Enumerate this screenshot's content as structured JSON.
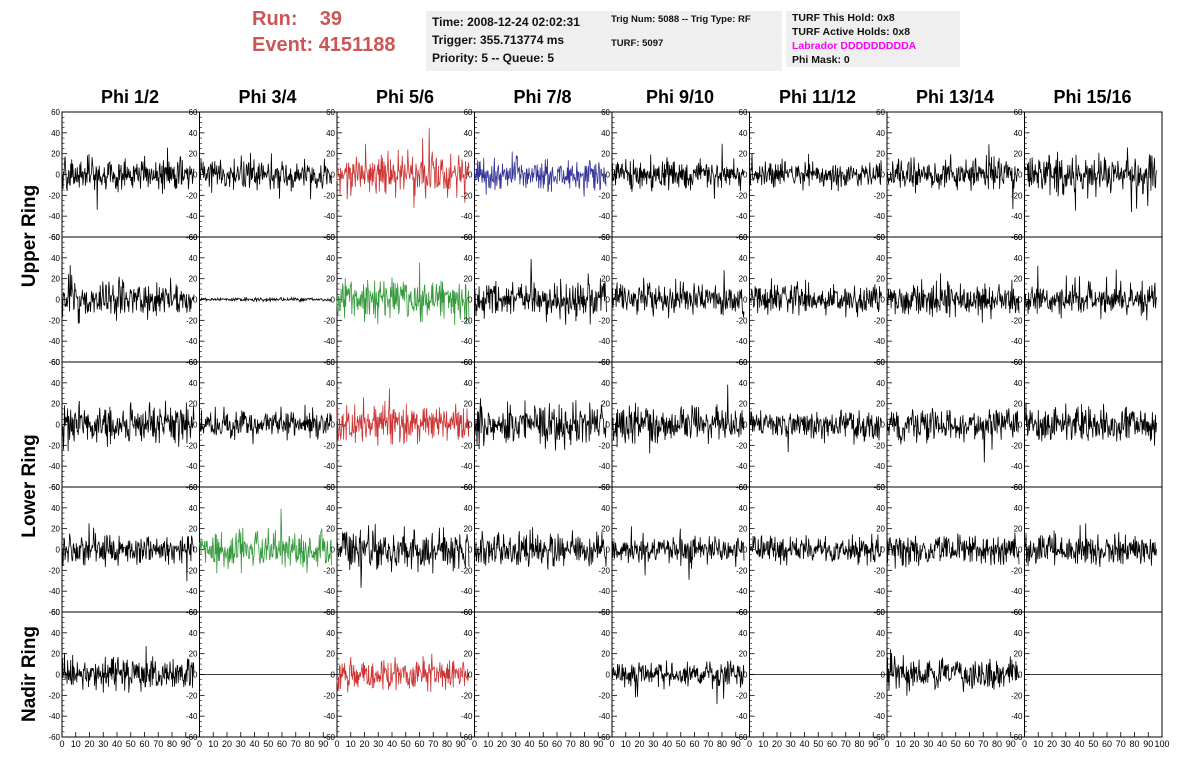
{
  "header": {
    "run_label": "Run:",
    "run_value": "39",
    "event_label": "Event:",
    "event_value": "4151188",
    "time": "Time: 2008-12-24 02:02:31",
    "trigger": "Trigger: 355.713774 ms",
    "priority_queue": "Priority: 5 -- Queue: 5",
    "trig_num_type": "Trig Num: 5088 -- Trig Type: RF",
    "turf": "TURF: 5097",
    "turf_this_hold": "TURF This Hold: 0x8",
    "turf_active_holds": "TURF Active Holds: 0x8",
    "labrador": "Labrador DDDDDDDDDA",
    "phi_mask": "Phi Mask: 0"
  },
  "phi_headers": [
    "Phi 1/2",
    "Phi 3/4",
    "Phi 5/6",
    "Phi 7/8",
    "Phi 9/10",
    "Phi 11/12",
    "Phi 13/14",
    "Phi 15/16"
  ],
  "ring_labels": [
    {
      "label": "Upper Ring",
      "rows": [
        0,
        1
      ]
    },
    {
      "label": "Lower Ring",
      "rows": [
        2,
        3
      ]
    },
    {
      "label": "Nadir Ring",
      "rows": [
        4
      ]
    }
  ],
  "chart_data": {
    "type": "line",
    "grid": false,
    "xlim": [
      0,
      100
    ],
    "ylim": [
      -60,
      60
    ],
    "y_ticks": [
      -60,
      -40,
      -20,
      0,
      20,
      40,
      60
    ],
    "x_tick_labels": [
      "0",
      "10",
      "20",
      "30",
      "40",
      "50",
      "60",
      "70",
      "80",
      "90",
      "100"
    ],
    "colors": {
      "normal": "#000000",
      "red": "#cc3333",
      "blue": "#333399",
      "green": "#33993a"
    },
    "panels": [
      [
        {
          "color": "normal",
          "amp": 14,
          "span": [
            0,
            96
          ]
        },
        {
          "color": "normal",
          "amp": 13,
          "span": [
            0,
            96
          ]
        },
        {
          "color": "red",
          "amp": 18,
          "span": [
            0,
            96
          ]
        },
        {
          "color": "blue",
          "amp": 14,
          "span": [
            0,
            96
          ]
        },
        {
          "color": "normal",
          "amp": 13,
          "span": [
            0,
            96
          ]
        },
        {
          "color": "normal",
          "amp": 11,
          "span": [
            0,
            96
          ]
        },
        {
          "color": "normal",
          "amp": 14,
          "span": [
            0,
            96
          ]
        },
        {
          "color": "normal",
          "amp": 17,
          "span": [
            0,
            96
          ]
        }
      ],
      [
        {
          "color": "normal",
          "amp": 15,
          "span": [
            0,
            96
          ]
        },
        {
          "color": "normal",
          "amp": 1.5,
          "span": [
            0,
            96
          ]
        },
        {
          "color": "green",
          "amp": 17,
          "span": [
            0,
            96
          ]
        },
        {
          "color": "normal",
          "amp": 15,
          "span": [
            0,
            96
          ]
        },
        {
          "color": "normal",
          "amp": 14,
          "span": [
            0,
            96
          ]
        },
        {
          "color": "normal",
          "amp": 14,
          "span": [
            0,
            96
          ]
        },
        {
          "color": "normal",
          "amp": 15,
          "span": [
            0,
            96
          ]
        },
        {
          "color": "normal",
          "amp": 14,
          "span": [
            0,
            96
          ]
        }
      ],
      [
        {
          "color": "normal",
          "amp": 17,
          "span": [
            0,
            96
          ]
        },
        {
          "color": "normal",
          "amp": 13,
          "span": [
            0,
            96
          ]
        },
        {
          "color": "red",
          "amp": 17,
          "span": [
            0,
            96
          ]
        },
        {
          "color": "normal",
          "amp": 18,
          "span": [
            0,
            96
          ]
        },
        {
          "color": "normal",
          "amp": 16,
          "span": [
            0,
            96
          ]
        },
        {
          "color": "normal",
          "amp": 13,
          "span": [
            0,
            96
          ]
        },
        {
          "color": "normal",
          "amp": 15,
          "span": [
            0,
            96
          ]
        },
        {
          "color": "normal",
          "amp": 15,
          "span": [
            0,
            96
          ]
        }
      ],
      [
        {
          "color": "normal",
          "amp": 13,
          "span": [
            0,
            96
          ]
        },
        {
          "color": "green",
          "amp": 17,
          "span": [
            0,
            96
          ]
        },
        {
          "color": "normal",
          "amp": 18,
          "span": [
            0,
            96
          ]
        },
        {
          "color": "normal",
          "amp": 14,
          "span": [
            0,
            96
          ]
        },
        {
          "color": "normal",
          "amp": 11,
          "span": [
            0,
            96
          ]
        },
        {
          "color": "normal",
          "amp": 12,
          "span": [
            0,
            96
          ]
        },
        {
          "color": "normal",
          "amp": 14,
          "span": [
            0,
            96
          ]
        },
        {
          "color": "normal",
          "amp": 14,
          "span": [
            0,
            96
          ]
        }
      ],
      [
        {
          "color": "normal",
          "amp": 15,
          "span": [
            0,
            96
          ]
        },
        {
          "color": "normal",
          "amp": 0,
          "span": [
            0,
            100
          ]
        },
        {
          "color": "red",
          "amp": 14,
          "span": [
            0,
            96
          ]
        },
        {
          "color": "normal",
          "amp": 0,
          "span": [
            0,
            0
          ]
        },
        {
          "color": "normal",
          "amp": 11,
          "span": [
            0,
            96
          ]
        },
        {
          "color": "normal",
          "amp": 0,
          "span": [
            0,
            100
          ]
        },
        {
          "color": "normal",
          "amp": 14,
          "span": [
            0,
            96
          ]
        },
        {
          "color": "normal",
          "amp": 0,
          "span": [
            0,
            100
          ]
        }
      ]
    ]
  }
}
